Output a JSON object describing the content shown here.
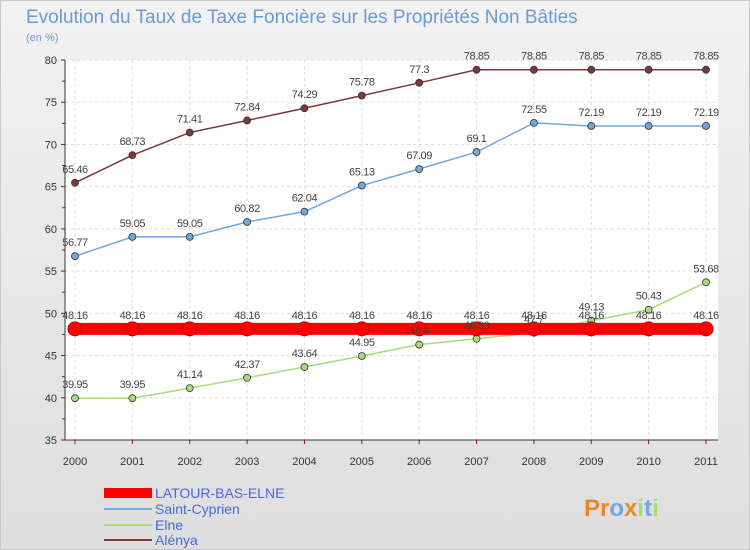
{
  "chart_data": {
    "type": "line",
    "title": "Evolution du Taux de Taxe Foncière sur les Propriétés Non Bâties",
    "subtitle": "(en %)",
    "x": [
      "2000",
      "2001",
      "2002",
      "2003",
      "2004",
      "2005",
      "2006",
      "2007",
      "2008",
      "2009",
      "2010",
      "2011"
    ],
    "ylim": [
      35,
      80
    ],
    "yticks": [
      35,
      40,
      45,
      50,
      55,
      60,
      65,
      70,
      75,
      80
    ],
    "ytick_labels": [
      "35",
      "40",
      "45",
      "50",
      "55",
      "60",
      "65",
      "70",
      "75",
      "80"
    ],
    "grid": true,
    "legend_position": "bottom-left",
    "series": [
      {
        "name": "LATOUR-BAS-ELNE",
        "color": "#ff0000",
        "values": [
          48.16,
          48.16,
          48.16,
          48.16,
          48.16,
          48.16,
          48.16,
          48.16,
          48.16,
          48.16,
          48.16,
          48.16
        ],
        "labels": [
          "48.16",
          "48.16",
          "48.16",
          "48.16",
          "48.16",
          "48.16",
          "48.16",
          "48.16",
          "48.16",
          "48.16",
          "48.16",
          "48.16"
        ]
      },
      {
        "name": "Saint-Cyprien",
        "color": "#6fa8dc",
        "values": [
          56.77,
          59.05,
          59.05,
          60.82,
          62.04,
          65.13,
          67.09,
          69.1,
          72.55,
          72.19,
          72.19,
          72.19
        ],
        "labels": [
          "56.77",
          "59.05",
          "59.05",
          "60.82",
          "62.04",
          "65.13",
          "67.09",
          "69.1",
          "72.55",
          "72.19",
          "72.19",
          "72.19"
        ]
      },
      {
        "name": "Elne",
        "color": "#a6dc7a",
        "values": [
          39.95,
          39.95,
          41.14,
          42.37,
          43.64,
          44.95,
          46.3,
          46.99,
          47.7,
          49.13,
          50.43,
          53.68
        ],
        "labels": [
          "39.95",
          "39.95",
          "41.14",
          "42.37",
          "43.64",
          "44.95",
          "46.3",
          "46.99",
          "47.7",
          "49.13",
          "50.43",
          "53.68"
        ]
      },
      {
        "name": "Alénya",
        "color": "#7b3a3a",
        "values": [
          65.46,
          68.73,
          71.41,
          72.84,
          74.29,
          75.78,
          77.3,
          78.85,
          78.85,
          78.85,
          78.85,
          78.85
        ],
        "labels": [
          "65.46",
          "68.73",
          "71.41",
          "72.84",
          "74.29",
          "75.78",
          "77.3",
          "78.85",
          "78.85",
          "78.85",
          "78.85",
          "78.85"
        ]
      }
    ]
  },
  "logo_text": "Proxiti",
  "logo_letters": [
    "P",
    "r",
    "o",
    "x",
    "i",
    "t",
    "i"
  ],
  "logo_colors": [
    "#e9892c",
    "#e9892c",
    "#6fa8dc",
    "#e9892c",
    "#a6dc7a",
    "#6fa8dc",
    "#a6dc7a"
  ]
}
